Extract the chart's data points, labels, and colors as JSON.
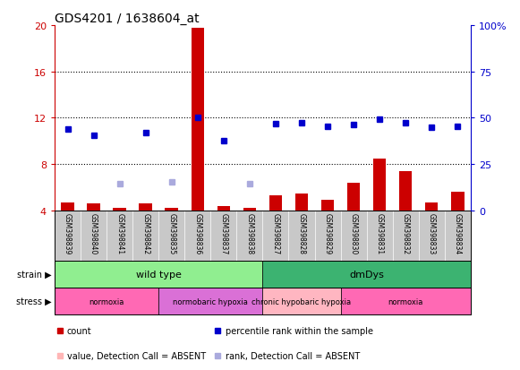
{
  "title": "GDS4201 / 1638604_at",
  "samples": [
    "GSM398839",
    "GSM398840",
    "GSM398841",
    "GSM398842",
    "GSM398835",
    "GSM398836",
    "GSM398837",
    "GSM398838",
    "GSM398827",
    "GSM398828",
    "GSM398829",
    "GSM398830",
    "GSM398831",
    "GSM398832",
    "GSM398833",
    "GSM398834"
  ],
  "count_values": [
    4.7,
    4.6,
    4.2,
    4.6,
    4.2,
    19.8,
    4.4,
    4.2,
    5.3,
    5.5,
    4.9,
    6.4,
    8.5,
    7.4,
    4.7,
    5.6
  ],
  "count_absent": [
    false,
    false,
    false,
    false,
    false,
    false,
    false,
    false,
    false,
    false,
    false,
    false,
    false,
    false,
    false,
    false
  ],
  "rank_values": [
    11.0,
    10.5,
    null,
    10.7,
    null,
    12.0,
    10.0,
    null,
    11.5,
    11.6,
    11.3,
    11.4,
    11.9,
    11.6,
    11.2,
    11.3
  ],
  "rank_absent_values": [
    null,
    null,
    6.3,
    null,
    6.5,
    null,
    null,
    6.3,
    null,
    null,
    null,
    null,
    null,
    null,
    null,
    null
  ],
  "ylim_left": [
    4,
    20
  ],
  "ylim_right": [
    0,
    100
  ],
  "yticks_left": [
    4,
    8,
    12,
    16,
    20
  ],
  "yticks_right": [
    0,
    25,
    50,
    75,
    100
  ],
  "ytick_labels_right": [
    "0",
    "25",
    "50",
    "75",
    "100%"
  ],
  "hgrid_lines": [
    8,
    12,
    16
  ],
  "strain_groups": [
    {
      "label": "wild type",
      "start": 0,
      "end": 8,
      "color": "#90EE90"
    },
    {
      "label": "dmDys",
      "start": 8,
      "end": 16,
      "color": "#3CB371"
    }
  ],
  "stress_groups": [
    {
      "label": "normoxia",
      "start": 0,
      "end": 4,
      "color": "#FF69B4"
    },
    {
      "label": "normobaric hypoxia",
      "start": 4,
      "end": 8,
      "color": "#DA70D6"
    },
    {
      "label": "chronic hypobaric hypoxia",
      "start": 8,
      "end": 11,
      "color": "#FFB6C1"
    },
    {
      "label": "normoxia",
      "start": 11,
      "end": 16,
      "color": "#FF69B4"
    }
  ],
  "bar_color": "#CC0000",
  "bar_absent_color": "#FFB6B6",
  "rank_color": "#0000CC",
  "rank_absent_color": "#AAAADD",
  "left_axis_color": "#CC0000",
  "right_axis_color": "#0000CC",
  "bg_color": "#FFFFFF",
  "xticklabel_bg": "#C8C8C8",
  "bar_width": 0.5,
  "legend_items": [
    {
      "color": "#CC0000",
      "label": "count"
    },
    {
      "color": "#0000CC",
      "label": "percentile rank within the sample"
    },
    {
      "color": "#FFB6B6",
      "label": "value, Detection Call = ABSENT"
    },
    {
      "color": "#AAAADD",
      "label": "rank, Detection Call = ABSENT"
    }
  ]
}
